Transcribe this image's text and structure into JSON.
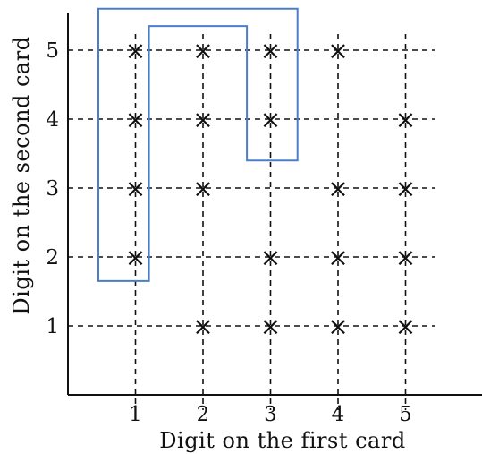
{
  "chart_data": {
    "type": "scatter",
    "xlabel": "Digit on the first card",
    "ylabel": "Digit on the second card",
    "x_ticks": [
      "1",
      "2",
      "3",
      "4",
      "5"
    ],
    "y_ticks": [
      "1",
      "2",
      "3",
      "4",
      "5"
    ],
    "xlim": [
      0,
      5.8
    ],
    "ylim": [
      0,
      5.6
    ],
    "grid": true,
    "grid_style": "dashed",
    "marker": "×",
    "marker_color": "#111111",
    "points": [
      {
        "x": 1,
        "y": 2
      },
      {
        "x": 1,
        "y": 3
      },
      {
        "x": 1,
        "y": 4
      },
      {
        "x": 1,
        "y": 5
      },
      {
        "x": 2,
        "y": 1
      },
      {
        "x": 2,
        "y": 3
      },
      {
        "x": 2,
        "y": 4
      },
      {
        "x": 2,
        "y": 5
      },
      {
        "x": 3,
        "y": 1
      },
      {
        "x": 3,
        "y": 2
      },
      {
        "x": 3,
        "y": 4
      },
      {
        "x": 3,
        "y": 5
      },
      {
        "x": 4,
        "y": 1
      },
      {
        "x": 4,
        "y": 2
      },
      {
        "x": 4,
        "y": 3
      },
      {
        "x": 4,
        "y": 5
      },
      {
        "x": 5,
        "y": 1
      },
      {
        "x": 5,
        "y": 2
      },
      {
        "x": 5,
        "y": 3
      },
      {
        "x": 5,
        "y": 4
      }
    ],
    "highlight_region": {
      "color": "#4a7ec8",
      "vertices": [
        [
          0.45,
          1.65
        ],
        [
          1.2,
          1.65
        ],
        [
          1.2,
          5.35
        ],
        [
          2.65,
          5.35
        ],
        [
          2.65,
          3.4
        ],
        [
          3.4,
          3.4
        ],
        [
          3.4,
          5.6
        ],
        [
          0.45,
          5.6
        ]
      ]
    }
  }
}
